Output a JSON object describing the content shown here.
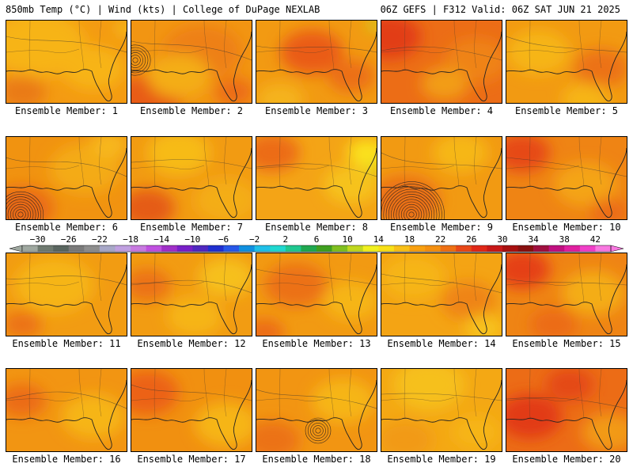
{
  "header": {
    "left": "850mb Temp (°C) | Wind (kts) | College of DuPage NEXLAB",
    "right": "06Z GEFS | F312 Valid: 06Z SAT JUN 21 2025"
  },
  "panels": [
    {
      "label": "Ensemble Member: 1",
      "base": "#f49b12",
      "blobs": [
        [
          "#f7b418",
          40,
          30,
          60
        ],
        [
          "#f7b418",
          110,
          60,
          40
        ],
        [
          "#ea7a14",
          20,
          90,
          30
        ],
        [
          "#f4c21a",
          150,
          10,
          12
        ]
      ],
      "cyclone": null
    },
    {
      "label": "Ensemble Member: 2",
      "base": "#f29512",
      "blobs": [
        [
          "#e85c17",
          20,
          100,
          45
        ],
        [
          "#ee8015",
          90,
          40,
          50
        ],
        [
          "#f4ad18",
          60,
          70,
          40
        ],
        [
          "#ec6c16",
          130,
          90,
          25
        ]
      ],
      "cyclone": [
        5,
        50,
        6
      ]
    },
    {
      "label": "Ensemble Member: 3",
      "base": "#f29a12",
      "blobs": [
        [
          "#ea5b18",
          70,
          40,
          40
        ],
        [
          "#ec6f16",
          120,
          70,
          30
        ],
        [
          "#f5b31a",
          30,
          100,
          30
        ],
        [
          "#c9e01c",
          150,
          5,
          10
        ]
      ],
      "cyclone": null
    },
    {
      "label": "Ensemble Member: 4",
      "base": "#ec6d16",
      "blobs": [
        [
          "#e23c17",
          10,
          20,
          40
        ],
        [
          "#ef8314",
          120,
          50,
          40
        ],
        [
          "#f29d12",
          80,
          80,
          30
        ]
      ],
      "cyclone": null
    },
    {
      "label": "Ensemble Member: 5",
      "base": "#f29a12",
      "blobs": [
        [
          "#f6b519",
          40,
          40,
          40
        ],
        [
          "#ec7216",
          120,
          60,
          35
        ],
        [
          "#f6b519",
          100,
          100,
          30
        ]
      ],
      "cyclone": null
    },
    {
      "label": "Ensemble Member: 6",
      "base": "#f19310",
      "blobs": [
        [
          "#ea6a16",
          20,
          90,
          40
        ],
        [
          "#f4ab16",
          100,
          40,
          45
        ],
        [
          "#f7b71a",
          130,
          10,
          25
        ]
      ],
      "cyclone": [
        18,
        98,
        9
      ]
    },
    {
      "label": "Ensemble Member: 7",
      "base": "#f29b12",
      "blobs": [
        [
          "#f7bb18",
          60,
          20,
          40
        ],
        [
          "#e55c18",
          20,
          90,
          35
        ],
        [
          "#f4ad16",
          120,
          80,
          40
        ]
      ],
      "cyclone": null
    },
    {
      "label": "Ensemble Member: 8",
      "base": "#f4a416",
      "blobs": [
        [
          "#ec6c16",
          20,
          20,
          35
        ],
        [
          "#fbe21a",
          140,
          20,
          25
        ],
        [
          "#f6c21a",
          120,
          60,
          35
        ],
        [
          "#c9e01c",
          150,
          40,
          8
        ]
      ],
      "cyclone": null
    },
    {
      "label": "Ensemble Member: 9",
      "base": "#f29a12",
      "blobs": [
        [
          "#ec7116",
          30,
          80,
          45
        ],
        [
          "#f6b719",
          100,
          20,
          35
        ]
      ],
      "cyclone": [
        38,
        98,
        13
      ]
    },
    {
      "label": "Ensemble Member: 10",
      "base": "#ef8414",
      "blobs": [
        [
          "#e64a18",
          20,
          20,
          35
        ],
        [
          "#f4a414",
          100,
          60,
          40
        ],
        [
          "#ec6c16",
          130,
          95,
          25
        ]
      ],
      "cyclone": null
    },
    {
      "label": "Ensemble Member: 11",
      "base": "#f29c12",
      "blobs": [
        [
          "#f6b519",
          60,
          40,
          50
        ],
        [
          "#ec7216",
          20,
          90,
          25
        ]
      ],
      "cyclone": null
    },
    {
      "label": "Ensemble Member: 12",
      "base": "#f29c12",
      "blobs": [
        [
          "#f6c01a",
          120,
          30,
          35
        ],
        [
          "#ec7216",
          20,
          40,
          30
        ],
        [
          "#f6b519",
          80,
          80,
          35
        ]
      ],
      "cyclone": null
    },
    {
      "label": "Ensemble Member: 13",
      "base": "#f29a12",
      "blobs": [
        [
          "#ec7116",
          50,
          40,
          40
        ],
        [
          "#f6b519",
          120,
          60,
          35
        ],
        [
          "#ec6c16",
          10,
          100,
          25
        ]
      ],
      "cyclone": null
    },
    {
      "label": "Ensemble Member: 14",
      "base": "#f4a414",
      "blobs": [
        [
          "#f6b519",
          40,
          30,
          40
        ],
        [
          "#ef8414",
          110,
          60,
          35
        ],
        [
          "#f7c31a",
          130,
          95,
          25
        ]
      ],
      "cyclone": null
    },
    {
      "label": "Ensemble Member: 15",
      "base": "#ef8414",
      "blobs": [
        [
          "#e54017",
          20,
          20,
          35
        ],
        [
          "#f4ad16",
          110,
          50,
          40
        ],
        [
          "#ec6c16",
          60,
          90,
          30
        ]
      ],
      "cyclone": null
    },
    {
      "label": "Ensemble Member: 16",
      "base": "#f29512",
      "blobs": [
        [
          "#ec6c16",
          20,
          40,
          30
        ],
        [
          "#f6b519",
          110,
          60,
          40
        ]
      ],
      "cyclone": null
    },
    {
      "label": "Ensemble Member: 17",
      "base": "#f19010",
      "blobs": [
        [
          "#ec6216",
          20,
          30,
          40
        ],
        [
          "#f6b519",
          120,
          70,
          40
        ]
      ],
      "cyclone": null
    },
    {
      "label": "Ensemble Member: 18",
      "base": "#f29512",
      "blobs": [
        [
          "#f6b519",
          110,
          40,
          40
        ],
        [
          "#ec7216",
          20,
          90,
          35
        ]
      ],
      "cyclone": [
        78,
        78,
        5
      ]
    },
    {
      "label": "Ensemble Member: 19",
      "base": "#f4a814",
      "blobs": [
        [
          "#f6c01a",
          60,
          20,
          45
        ],
        [
          "#f29a12",
          30,
          90,
          35
        ],
        [
          "#f6b519",
          120,
          80,
          30
        ]
      ],
      "cyclone": null
    },
    {
      "label": "Ensemble Member: 20",
      "base": "#ec6c16",
      "blobs": [
        [
          "#e23a17",
          30,
          60,
          40
        ],
        [
          "#e44a18",
          80,
          20,
          30
        ],
        [
          "#f29a12",
          130,
          80,
          35
        ]
      ],
      "cyclone": null
    }
  ],
  "colorbar": {
    "min": -32,
    "max": 44,
    "colors": [
      "#9fa8a0",
      "#6f7a70",
      "#5a6660",
      "#7a7a7a",
      "#8e8e8e",
      "#a8a8c8",
      "#c0a0e0",
      "#c87ae0",
      "#c050e0",
      "#a030c8",
      "#7820c8",
      "#5028c0",
      "#2030d0",
      "#2858e8",
      "#1090e0",
      "#20c0e8",
      "#20d8d0",
      "#20c890",
      "#20a850",
      "#40a020",
      "#80c020",
      "#c0d820",
      "#f0f020",
      "#f8e018",
      "#f8c018",
      "#f8a010",
      "#f49010",
      "#ee7014",
      "#e84818",
      "#e02818",
      "#c81818",
      "#a81010",
      "#881010",
      "#a01040",
      "#c01080",
      "#e020a0",
      "#f040c8",
      "#f878e0"
    ],
    "ticks": [
      "−30",
      "−26",
      "−22",
      "−18",
      "−14",
      "−10",
      "−6",
      "−2",
      "2",
      "6",
      "10",
      "14",
      "18",
      "22",
      "26",
      "30",
      "34",
      "38",
      "42"
    ],
    "tick_values": [
      -30,
      -26,
      -22,
      -18,
      -14,
      -10,
      -6,
      -2,
      2,
      6,
      10,
      14,
      18,
      22,
      26,
      30,
      34,
      38,
      42
    ]
  }
}
